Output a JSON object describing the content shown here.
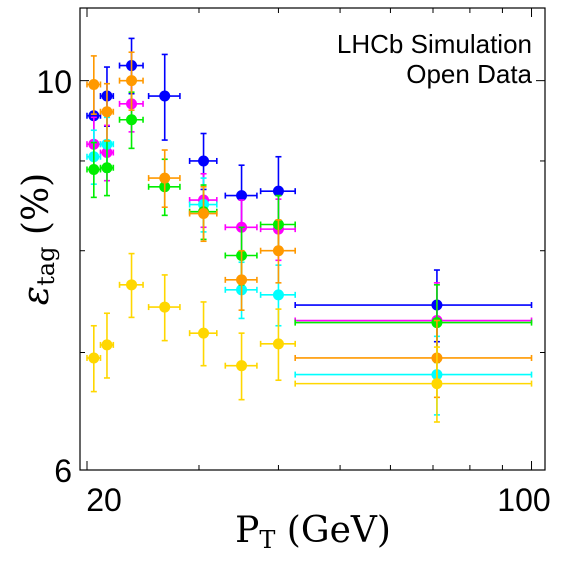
{
  "chart_data": {
    "type": "scatter",
    "annotation_lines": [
      "LHCb Simulation",
      "Open Data"
    ],
    "xlabel_main": "P",
    "xlabel_sub": "T",
    "xlabel_rest": " (GeV)",
    "ylabel_main": "ε",
    "ylabel_sub": "tag",
    "ylabel_rest": " (%)",
    "x_scale": "log",
    "y_scale": "log",
    "xlim": [
      19.5,
      105
    ],
    "ylim": [
      6,
      11
    ],
    "x_ticks": [
      20,
      100
    ],
    "y_ticks": [
      6,
      10
    ],
    "grid": false,
    "series": [
      {
        "color": "#0000ff",
        "points": [
          {
            "x": 20.5,
            "y": 9.55,
            "xlo": 20,
            "xhi": 21,
            "yerr": 0.35
          },
          {
            "x": 21.5,
            "y": 9.8,
            "xlo": 21,
            "xhi": 22,
            "yerr": 0.38
          },
          {
            "x": 23.5,
            "y": 10.2,
            "xlo": 22.5,
            "xhi": 24.5,
            "yerr": 0.37
          },
          {
            "x": 26.5,
            "y": 9.8,
            "xlo": 25,
            "xhi": 28,
            "yerr": 0.55
          },
          {
            "x": 30.5,
            "y": 9.0,
            "xlo": 29,
            "xhi": 32,
            "yerr": 0.33
          },
          {
            "x": 35,
            "y": 8.6,
            "xlo": 33,
            "xhi": 37,
            "yerr": 0.35
          },
          {
            "x": 40,
            "y": 8.65,
            "xlo": 37.5,
            "xhi": 42.5,
            "yerr": 0.4
          },
          {
            "x": 71,
            "y": 7.45,
            "xlo": 42.5,
            "xhi": 100,
            "yerr": 0.35
          }
        ]
      },
      {
        "color": "#ff00ff",
        "points": [
          {
            "x": 20.5,
            "y": 9.2,
            "xlo": 20,
            "xhi": 21,
            "yerr": 0.33
          },
          {
            "x": 21.5,
            "y": 9.1,
            "xlo": 21,
            "xhi": 22,
            "yerr": 0.33
          },
          {
            "x": 23.5,
            "y": 9.7,
            "xlo": 22.5,
            "xhi": 24.5,
            "yerr": 0.35
          },
          {
            "x": 30.5,
            "y": 8.55,
            "xlo": 29,
            "xhi": 32,
            "yerr": 0.3
          },
          {
            "x": 35,
            "y": 8.25,
            "xlo": 33,
            "xhi": 37,
            "yerr": 0.3
          },
          {
            "x": 40,
            "y": 8.23,
            "xlo": 37.5,
            "xhi": 42.5,
            "yerr": 0.33
          },
          {
            "x": 71,
            "y": 7.3,
            "xlo": 42.5,
            "xhi": 100,
            "yerr": 0.37
          }
        ]
      },
      {
        "color": "#00ffff",
        "points": [
          {
            "x": 20.5,
            "y": 9.05,
            "xlo": 20,
            "xhi": 21,
            "yerr": 0.32
          },
          {
            "x": 21.5,
            "y": 9.2,
            "xlo": 21,
            "xhi": 22,
            "yerr": 0.33
          },
          {
            "x": 30.5,
            "y": 8.5,
            "xlo": 29,
            "xhi": 32,
            "yerr": 0.3
          },
          {
            "x": 35,
            "y": 7.6,
            "xlo": 33,
            "xhi": 37,
            "yerr": 0.28
          },
          {
            "x": 40,
            "y": 7.55,
            "xlo": 37.5,
            "xhi": 42.5,
            "yerr": 0.3
          },
          {
            "x": 71,
            "y": 6.8,
            "xlo": 42.5,
            "xhi": 100,
            "yerr": 0.35
          }
        ]
      },
      {
        "color": "#00ee00",
        "points": [
          {
            "x": 20.5,
            "y": 8.9,
            "xlo": 20,
            "xhi": 21,
            "yerr": 0.32
          },
          {
            "x": 21.5,
            "y": 8.92,
            "xlo": 21,
            "xhi": 22,
            "yerr": 0.32
          },
          {
            "x": 23.5,
            "y": 9.5,
            "xlo": 22.5,
            "xhi": 24.5,
            "yerr": 0.35
          },
          {
            "x": 26.5,
            "y": 8.7,
            "xlo": 25,
            "xhi": 28,
            "yerr": 0.32
          },
          {
            "x": 30.5,
            "y": 8.42,
            "xlo": 29,
            "xhi": 32,
            "yerr": 0.3
          },
          {
            "x": 35,
            "y": 7.95,
            "xlo": 33,
            "xhi": 37,
            "yerr": 0.3
          },
          {
            "x": 40,
            "y": 8.28,
            "xlo": 37.5,
            "xhi": 42.5,
            "yerr": 0.32
          },
          {
            "x": 71,
            "y": 7.28,
            "xlo": 42.5,
            "xhi": 100,
            "yerr": 0.37
          }
        ]
      },
      {
        "color": "#ff9900",
        "points": [
          {
            "x": 20.5,
            "y": 9.95,
            "xlo": 20,
            "xhi": 21,
            "yerr": 0.38
          },
          {
            "x": 21.5,
            "y": 9.6,
            "xlo": 21,
            "xhi": 22,
            "yerr": 0.36
          },
          {
            "x": 23.5,
            "y": 10.0,
            "xlo": 22.5,
            "xhi": 24.5,
            "yerr": 0.38
          },
          {
            "x": 26.5,
            "y": 8.8,
            "xlo": 25,
            "xhi": 28,
            "yerr": 0.33
          },
          {
            "x": 30.5,
            "y": 8.4,
            "xlo": 29,
            "xhi": 32,
            "yerr": 0.3
          },
          {
            "x": 35,
            "y": 7.7,
            "xlo": 33,
            "xhi": 37,
            "yerr": 0.3
          },
          {
            "x": 40,
            "y": 8.0,
            "xlo": 37.5,
            "xhi": 42.5,
            "yerr": 0.33
          },
          {
            "x": 71,
            "y": 6.95,
            "xlo": 42.5,
            "xhi": 100,
            "yerr": 0.35
          }
        ]
      },
      {
        "color": "#ffd700",
        "points": [
          {
            "x": 20.5,
            "y": 6.95,
            "xlo": 20,
            "xhi": 21,
            "yerr": 0.3
          },
          {
            "x": 21.5,
            "y": 7.07,
            "xlo": 21,
            "xhi": 22,
            "yerr": 0.3
          },
          {
            "x": 23.5,
            "y": 7.65,
            "xlo": 22.5,
            "xhi": 24.5,
            "yerr": 0.32
          },
          {
            "x": 26.5,
            "y": 7.43,
            "xlo": 25,
            "xhi": 28,
            "yerr": 0.32
          },
          {
            "x": 30.5,
            "y": 7.18,
            "xlo": 29,
            "xhi": 32,
            "yerr": 0.3
          },
          {
            "x": 35,
            "y": 6.88,
            "xlo": 33,
            "xhi": 37,
            "yerr": 0.3
          },
          {
            "x": 40,
            "y": 7.08,
            "xlo": 37.5,
            "xhi": 42.5,
            "yerr": 0.33
          },
          {
            "x": 71,
            "y": 6.72,
            "xlo": 42.5,
            "xhi": 100,
            "yerr": 0.33
          }
        ]
      }
    ]
  }
}
